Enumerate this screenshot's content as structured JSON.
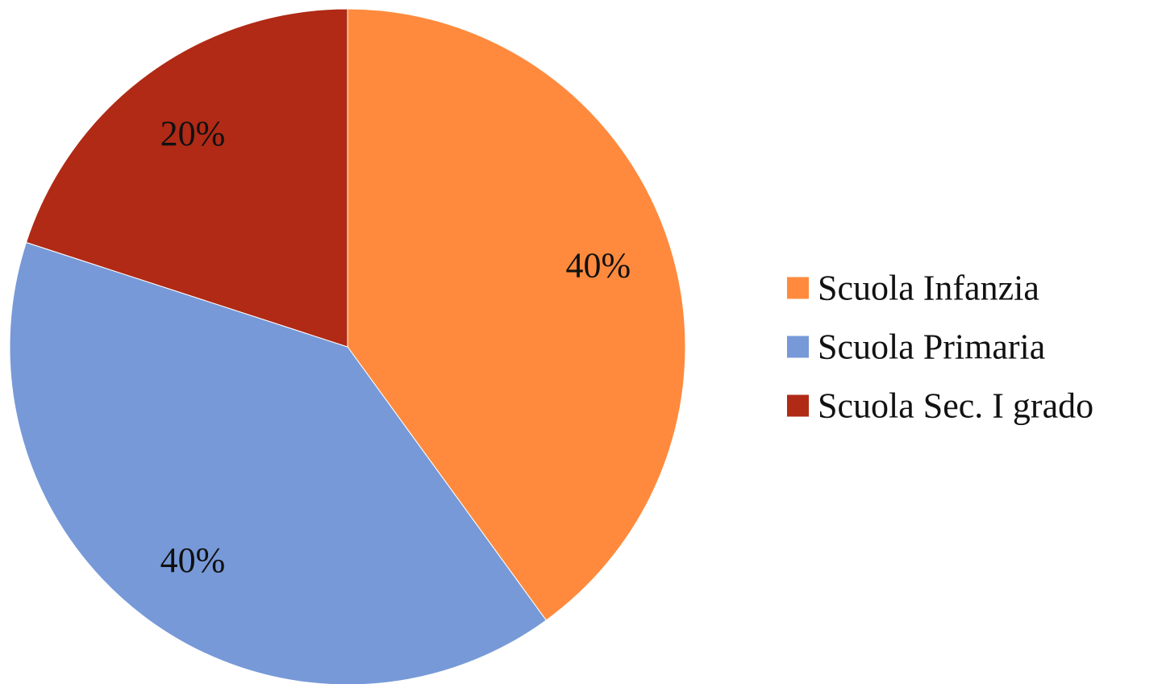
{
  "chart_data": {
    "type": "pie",
    "title": "",
    "start_angle_deg": 0,
    "direction": "clockwise",
    "slices": [
      {
        "name": "Scuola Infanzia",
        "value": 40,
        "label": "40%",
        "color": "#FF8A3D"
      },
      {
        "name": "Scuola Primaria",
        "value": 40,
        "label": "40%",
        "color": "#7799D8"
      },
      {
        "name": "Scuola Sec. I grado",
        "value": 20,
        "label": "20%",
        "color": "#B02A16"
      }
    ],
    "legend": {
      "placement": "right",
      "entries": [
        "Scuola Infanzia",
        "Scuola Primaria",
        "Scuola Sec. I grado"
      ]
    }
  }
}
